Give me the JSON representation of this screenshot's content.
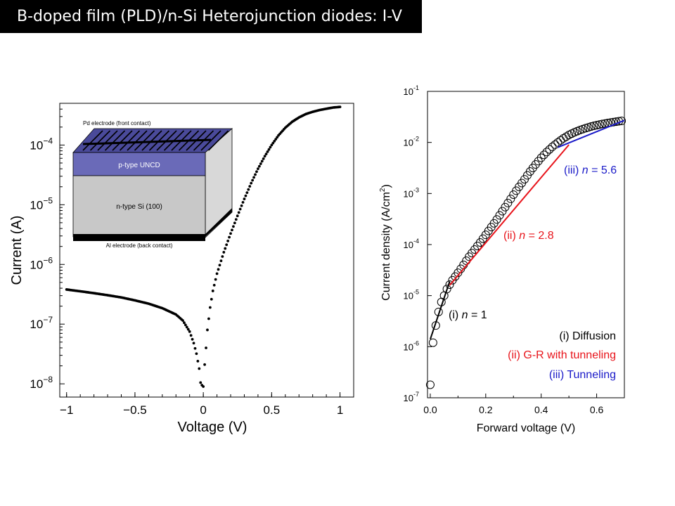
{
  "slide": {
    "title": "B-doped film (PLD)/n-Si Heterojunction diodes:  I-V"
  },
  "colors": {
    "black": "#000000",
    "red": "#e8141b",
    "blue": "#1a1ac8",
    "inset_purple": "#6a6ab8",
    "inset_gray": "#c8c8c8"
  },
  "chart_data": [
    {
      "type": "scatter",
      "scale": {
        "x": "linear",
        "y": "log"
      },
      "xlabel": "Voltage (V)",
      "ylabel": "Current (A)",
      "xlim": [
        -1.05,
        1.1
      ],
      "ylim": [
        6e-09,
        0.0005
      ],
      "x_ticks": [
        "−1",
        "−0.5",
        "0",
        "0.5",
        "1"
      ],
      "y_ticks": [
        "10−8",
        "10−7",
        "10−6",
        "10−5",
        "10−4"
      ],
      "series": [
        {
          "x": [
            -1.0,
            -0.9,
            -0.8,
            -0.7,
            -0.6,
            -0.5,
            -0.4,
            -0.3,
            -0.2,
            -0.15,
            -0.1,
            -0.07,
            -0.05,
            -0.03,
            -0.02,
            -0.01,
            0.0,
            0.01,
            0.02,
            0.03,
            0.05,
            0.07,
            0.1,
            0.15,
            0.2,
            0.25,
            0.3,
            0.35,
            0.4,
            0.45,
            0.5,
            0.55,
            0.6,
            0.65,
            0.7,
            0.75,
            0.8,
            0.85,
            0.9,
            0.95,
            1.0
          ],
          "values": [
            3.8e-07,
            3.55e-07,
            3.3e-07,
            3.05e-07,
            2.8e-07,
            2.5e-07,
            2.2e-07,
            1.85e-07,
            1.45e-07,
            1.15e-07,
            7.5e-08,
            4.8e-08,
            3.2e-08,
            1.8e-08,
            1.05e-08,
            9.5e-09,
            9e-09,
            2.1e-08,
            4e-08,
            8e-08,
            1.9e-07,
            3.6e-07,
            7e-07,
            1.6e-06,
            3.3e-06,
            6.5e-06,
            1.25e-05,
            2.3e-05,
            4e-05,
            6.5e-05,
            0.0001,
            0.000145,
            0.000195,
            0.000245,
            0.00029,
            0.00033,
            0.00036,
            0.000385,
            0.000405,
            0.000425,
            0.000435
          ]
        }
      ],
      "inset": {
        "front_contact": "Pd electrode (front contact)",
        "layer_top": "p-type UNCD",
        "layer_bottom": "n-type Si (100)",
        "back_contact": "Al electrode (back contact)"
      }
    },
    {
      "type": "scatter",
      "scale": {
        "x": "linear",
        "y": "log"
      },
      "xlabel": "Forward voltage (V)",
      "ylabel": "Current density (A/cm",
      "ylabel_sup": "2",
      "ylabel_end": ")",
      "xlim": [
        -0.01,
        0.7
      ],
      "ylim": [
        1e-07,
        0.1
      ],
      "x_ticks": [
        "0.0",
        "0.2",
        "0.4",
        "0.6"
      ],
      "y_ticks": [
        {
          "base": "10",
          "exp": "-7"
        },
        {
          "base": "10",
          "exp": "-6"
        },
        {
          "base": "10",
          "exp": "-5"
        },
        {
          "base": "10",
          "exp": "-4"
        },
        {
          "base": "10",
          "exp": "-3"
        },
        {
          "base": "10",
          "exp": "-2"
        },
        {
          "base": "10",
          "exp": "-1"
        }
      ],
      "data": {
        "x": [
          0.0,
          0.01,
          0.02,
          0.03,
          0.04,
          0.05,
          0.06,
          0.08,
          0.1,
          0.12,
          0.14,
          0.16,
          0.18,
          0.2,
          0.22,
          0.24,
          0.26,
          0.28,
          0.3,
          0.32,
          0.34,
          0.36,
          0.38,
          0.4,
          0.42,
          0.44,
          0.46,
          0.48,
          0.5,
          0.52,
          0.54,
          0.56,
          0.58,
          0.6,
          0.62,
          0.64,
          0.66,
          0.68,
          0.7
        ],
        "values": [
          1.8e-07,
          1.2e-06,
          2.6e-06,
          4.8e-06,
          7.5e-06,
          1e-05,
          1.35e-05,
          2e-05,
          2.8e-05,
          4e-05,
          5.8e-05,
          8e-05,
          0.00011,
          0.000155,
          0.00022,
          0.00031,
          0.00045,
          0.00065,
          0.00095,
          0.00135,
          0.0019,
          0.0027,
          0.0037,
          0.005,
          0.0065,
          0.0082,
          0.01,
          0.012,
          0.014,
          0.0158,
          0.0175,
          0.019,
          0.0205,
          0.0218,
          0.023,
          0.024,
          0.025,
          0.026,
          0.0268
        ]
      },
      "fits": [
        {
          "name": "(i) Diffusion",
          "ideality": "n = 1",
          "color": "#000000",
          "x": [
            0.0,
            0.07
          ],
          "values": [
            1.4e-06,
            1.9e-05
          ]
        },
        {
          "name": "(ii) G-R with tunneling",
          "ideality": "n = 2.8",
          "color": "#e8141b",
          "x": [
            0.07,
            0.5
          ],
          "values": [
            1.6e-05,
            0.009
          ]
        },
        {
          "name": "(iii) Tunneling",
          "ideality": "n = 5.6",
          "color": "#1a1ac8",
          "x": [
            0.46,
            0.7
          ],
          "values": [
            0.008,
            0.027
          ]
        }
      ],
      "annotations": {
        "i_prefix": "(i) ",
        "i_n": "n",
        "i_val": " = 1",
        "ii_prefix": "(ii) ",
        "ii_n": "n",
        "ii_val": " = 2.8",
        "iii_prefix": "(iii) ",
        "iii_n": "n",
        "iii_val": " = 5.6"
      },
      "legend": [
        "(i) Diffusion",
        "(ii) G-R with tunneling",
        "(iii) Tunneling"
      ]
    }
  ]
}
